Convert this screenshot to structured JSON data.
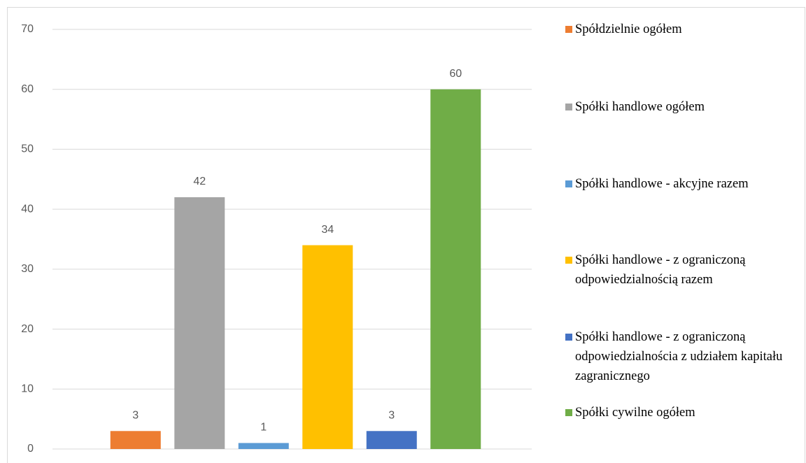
{
  "chart_data": {
    "type": "bar",
    "categories": [
      null
    ],
    "series": [
      {
        "name": "Spółdzielnie ogółem",
        "color": "#ed7d31",
        "values": [
          3
        ]
      },
      {
        "name": "Spółki handlowe ogółem",
        "color": "#a5a5a5",
        "values": [
          42
        ]
      },
      {
        "name": "Spółki handlowe - akcyjne razem",
        "color": "#5b9bd5",
        "values": [
          1
        ]
      },
      {
        "name": "Spółki handlowe - z ograniczoną odpowiedzialnością razem",
        "color": "#ffc000",
        "values": [
          34
        ]
      },
      {
        "name": "Spółki handlowe - z ograniczoną odpowiedzialnościa z udziałem kapitału zagranicznego",
        "color": "#4472c4",
        "values": [
          3
        ]
      },
      {
        "name": "Spółki cywilne ogółem",
        "color": "#70ad47",
        "values": [
          60
        ]
      }
    ],
    "ylim": [
      0,
      70
    ],
    "yticks": [
      0,
      10,
      20,
      30,
      40,
      50,
      60,
      70
    ],
    "grid": true,
    "legend": "right"
  }
}
